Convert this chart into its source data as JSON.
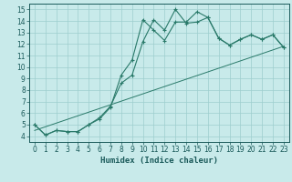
{
  "xlabel": "Humidex (Indice chaleur)",
  "bg_color": "#c8eaea",
  "line_color": "#2a7a6a",
  "xlim": [
    -0.5,
    23.5
  ],
  "ylim": [
    3.5,
    15.5
  ],
  "xticks": [
    0,
    1,
    2,
    3,
    4,
    5,
    6,
    7,
    8,
    9,
    10,
    11,
    12,
    13,
    14,
    15,
    16,
    17,
    18,
    19,
    20,
    21,
    22,
    23
  ],
  "yticks": [
    4,
    5,
    6,
    7,
    8,
    9,
    10,
    11,
    12,
    13,
    14,
    15
  ],
  "line1_x": [
    0,
    1,
    2,
    3,
    4,
    5,
    6,
    7,
    8,
    9,
    10,
    11,
    12,
    13,
    14,
    15,
    16,
    17,
    18,
    19,
    20,
    21,
    22,
    23
  ],
  "line1_y": [
    5.0,
    4.1,
    4.5,
    4.4,
    4.4,
    5.0,
    5.5,
    6.5,
    9.3,
    10.6,
    14.1,
    13.2,
    12.3,
    13.9,
    13.9,
    14.8,
    14.3,
    12.5,
    11.9,
    12.4,
    12.8,
    12.4,
    12.8,
    11.7
  ],
  "line2_x": [
    0,
    1,
    2,
    3,
    4,
    5,
    6,
    7,
    8,
    9,
    10,
    11,
    12,
    13,
    14,
    15,
    16,
    17,
    18,
    19,
    20,
    21,
    22,
    23
  ],
  "line2_y": [
    5.0,
    4.1,
    4.5,
    4.4,
    4.4,
    5.0,
    5.6,
    6.6,
    8.6,
    9.3,
    12.2,
    14.1,
    13.2,
    15.0,
    13.8,
    13.9,
    14.3,
    12.5,
    11.9,
    12.4,
    12.8,
    12.4,
    12.8,
    11.7
  ],
  "line3_x": [
    0,
    23
  ],
  "line3_y": [
    4.5,
    11.8
  ],
  "grid_color": "#9ecece",
  "font_color": "#1a5a5a",
  "tick_fontsize": 5.5,
  "xlabel_fontsize": 6.5
}
